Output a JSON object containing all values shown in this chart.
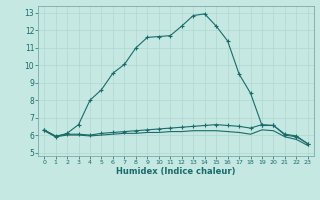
{
  "xlabel": "Humidex (Indice chaleur)",
  "bg_color": "#c5e8e2",
  "grid_color": "#b0d8d0",
  "line_color": "#1a6b6b",
  "xlim": [
    -0.5,
    23.5
  ],
  "ylim": [
    4.8,
    13.4
  ],
  "yticks": [
    5,
    6,
    7,
    8,
    9,
    10,
    11,
    12,
    13
  ],
  "xticks": [
    0,
    1,
    2,
    3,
    4,
    5,
    6,
    7,
    8,
    9,
    10,
    11,
    12,
    13,
    14,
    15,
    16,
    17,
    18,
    19,
    20,
    21,
    22,
    23
  ],
  "line1_x": [
    0,
    1,
    2,
    3,
    4,
    5,
    6,
    7,
    8,
    9,
    10,
    11,
    12,
    13,
    14,
    15,
    16,
    17,
    18,
    19,
    20,
    21,
    22,
    23
  ],
  "line1_y": [
    6.3,
    5.9,
    6.1,
    6.6,
    8.0,
    8.6,
    9.55,
    10.05,
    11.0,
    11.6,
    11.65,
    11.7,
    12.25,
    12.85,
    12.95,
    12.25,
    11.4,
    9.5,
    8.4,
    6.55,
    6.55,
    6.05,
    5.95,
    5.5
  ],
  "line2_x": [
    0,
    1,
    2,
    3,
    4,
    5,
    6,
    7,
    8,
    9,
    10,
    11,
    12,
    13,
    14,
    15,
    16,
    17,
    18,
    19,
    20,
    21,
    22,
    23
  ],
  "line2_y": [
    6.3,
    5.95,
    6.05,
    6.05,
    6.0,
    6.1,
    6.15,
    6.2,
    6.25,
    6.3,
    6.35,
    6.4,
    6.45,
    6.5,
    6.55,
    6.6,
    6.55,
    6.5,
    6.4,
    6.6,
    6.55,
    6.0,
    5.9,
    5.5
  ],
  "line3_x": [
    0,
    1,
    2,
    3,
    4,
    5,
    6,
    7,
    8,
    9,
    10,
    11,
    12,
    13,
    14,
    15,
    16,
    17,
    18,
    19,
    20,
    21,
    22,
    23
  ],
  "line3_y": [
    6.25,
    5.9,
    6.0,
    6.0,
    5.95,
    6.0,
    6.05,
    6.1,
    6.1,
    6.15,
    6.15,
    6.2,
    6.2,
    6.25,
    6.25,
    6.25,
    6.2,
    6.15,
    6.05,
    6.3,
    6.25,
    5.9,
    5.75,
    5.4
  ]
}
